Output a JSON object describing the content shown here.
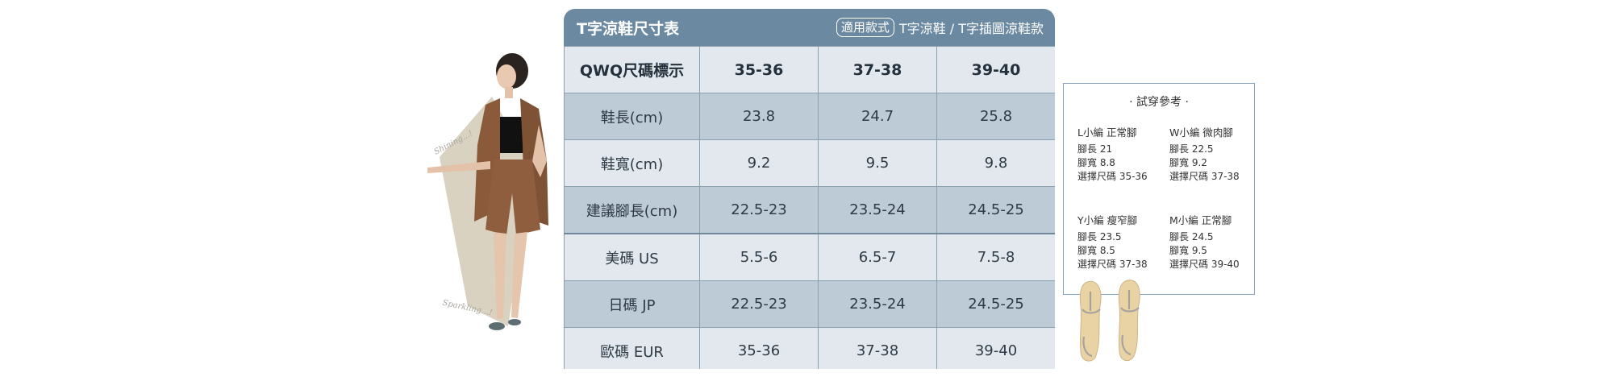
{
  "model": {
    "script_top": "Shining...!",
    "script_bottom": "Sparkling...!"
  },
  "table": {
    "title": "T字涼鞋尺寸表",
    "applicable_tag": "適用款式",
    "applicable_text": "T字涼鞋 / T字插圖涼鞋款",
    "header": [
      "QWQ尺碼標示",
      "35-36",
      "37-38",
      "39-40"
    ],
    "rows": [
      [
        "鞋長(cm)",
        "23.8",
        "24.7",
        "25.8"
      ],
      [
        "鞋寬(cm)",
        "9.2",
        "9.5",
        "9.8"
      ],
      [
        "建議腳長(cm)",
        "22.5-23",
        "23.5-24",
        "24.5-25"
      ],
      [
        "美碼 US",
        "5.5-6",
        "6.5-7",
        "7.5-8"
      ],
      [
        "日碼 JP",
        "22.5-23",
        "23.5-24",
        "24.5-25"
      ],
      [
        "歐碼 EUR",
        "35-36",
        "37-38",
        "39-40"
      ]
    ]
  },
  "fit_reference": {
    "title": "· 試穿參考 ·",
    "entries": [
      {
        "name": "L小編 正常腳",
        "lines": [
          "腳長 21",
          "腳寬 8.8",
          "選擇尺碼 35-36"
        ]
      },
      {
        "name": "W小編 微肉腳",
        "lines": [
          "腳長 22.5",
          "腳寬 9.2",
          "選擇尺碼 37-38"
        ]
      },
      {
        "name": "Y小編 瘦窄腳",
        "lines": [
          "腳長 23.5",
          "腳寬 8.5",
          "選擇尺碼 37-38"
        ]
      },
      {
        "name": "M小編 正常腳",
        "lines": [
          "腳長 24.5",
          "腳寬 9.5",
          "選擇尺碼 39-40"
        ]
      }
    ]
  },
  "colors": {
    "header_bg": "#6b8aa2",
    "row_light": "#e2e8ed",
    "row_dark": "#bccbd6",
    "border": "#8aa1b2",
    "ref_border": "#8aa3bd"
  }
}
